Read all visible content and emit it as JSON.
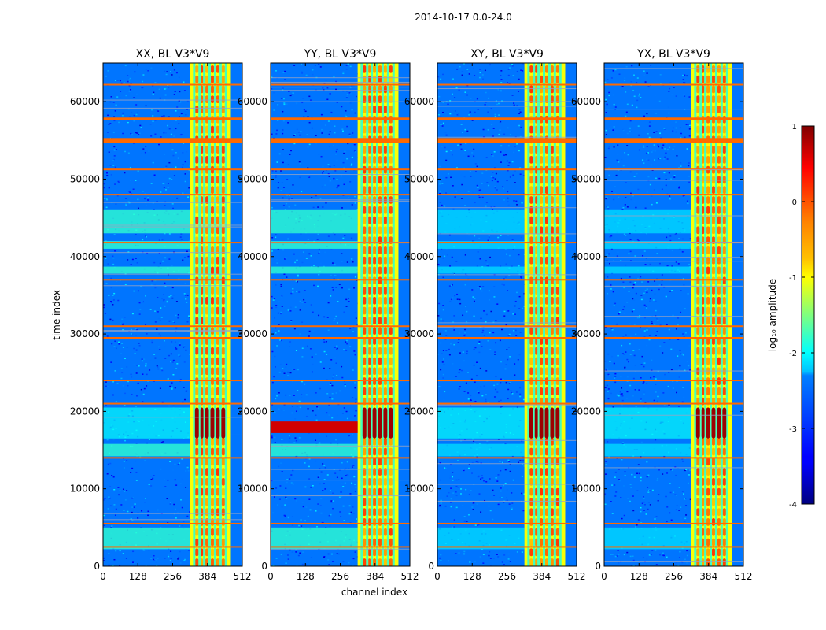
{
  "chart_data": {
    "type": "heatmap",
    "title": "2014-10-17 0.0-24.0",
    "shared_xlabel": "channel index",
    "shared_ylabel": "time index",
    "xlim": [
      0,
      512
    ],
    "ylim": [
      0,
      65000
    ],
    "xticks": [
      0,
      128,
      256,
      384,
      512
    ],
    "yticks": [
      0,
      10000,
      20000,
      30000,
      40000,
      50000,
      60000
    ],
    "panels": [
      {
        "title": "XX, BL V3*V9",
        "pol": "XX"
      },
      {
        "title": "YY, BL V3*V9",
        "pol": "YY"
      },
      {
        "title": "XY, BL V3*V9",
        "pol": "XY"
      },
      {
        "title": "YX, BL V3*V9",
        "pol": "YX"
      }
    ],
    "colorbar": {
      "label": "log₁₀ amplitude",
      "range": [
        -4,
        1
      ],
      "ticks": [
        1,
        0,
        -1,
        -2,
        -3,
        -4
      ],
      "colormap": "jet"
    },
    "features": {
      "background_level": -2.8,
      "bright_channel_band": [
        320,
        470
      ],
      "bright_channel_stripes": [
        335,
        355,
        372,
        392,
        412,
        432,
        452
      ],
      "hot_time_band": [
        16500,
        20500
      ],
      "flagged_rows_time": [
        55000,
        51300,
        57800,
        41800,
        31000,
        29500,
        37000,
        24000,
        21000,
        14000,
        5500,
        2500,
        62200,
        48000
      ],
      "cyan_bands_xx_yy": [
        [
          41000,
          42000
        ],
        [
          37800,
          38700
        ],
        [
          43000,
          46000
        ],
        [
          2200,
          5000
        ],
        [
          14200,
          15800
        ]
      ]
    }
  },
  "colors": {
    "flag_row": "#ff6a00",
    "hot": "#800000",
    "cyan": "#00e5ff",
    "background": "#1a50ff"
  }
}
